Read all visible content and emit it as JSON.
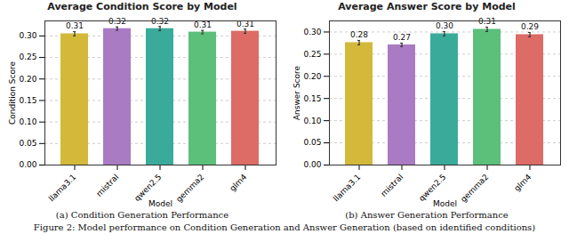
{
  "chart_data": [
    {
      "type": "bar",
      "title": "Average Condition Score by Model",
      "subtitle": "(a) Condition Generation Performance",
      "x_label": "Model",
      "y_label": "Condition Score",
      "categories": [
        "llama3.1",
        "mistral",
        "qwen2.5",
        "gemma2",
        "glm4"
      ],
      "values": [
        0.305,
        0.317,
        0.317,
        0.309,
        0.311
      ],
      "errors": [
        0.005,
        0.004,
        0.005,
        0.004,
        0.005
      ],
      "value_labels": [
        "0.31",
        "0.32",
        "0.32",
        "0.31",
        "0.31"
      ],
      "colors": [
        "#d4b83a",
        "#a97bc2",
        "#3aab9a",
        "#5cbf7a",
        "#dd6b66"
      ],
      "ylim": [
        0,
        0.335
      ],
      "yticks": [
        {
          "value": 0,
          "label": "0.00"
        },
        {
          "value": 0.05,
          "label": "0.05"
        },
        {
          "value": 0.1,
          "label": "0.10"
        },
        {
          "value": 0.15,
          "label": "0.15"
        },
        {
          "value": 0.2,
          "label": "0.20"
        },
        {
          "value": 0.25,
          "label": "0.25"
        },
        {
          "value": 0.3,
          "label": "0.30"
        }
      ],
      "grid": true,
      "data_labels": true
    },
    {
      "type": "bar",
      "title": "Average Answer Score by Model",
      "subtitle": "(b) Answer Generation Performance",
      "x_label": "Model",
      "y_label": "Answer Score",
      "categories": [
        "llama3.1",
        "mistral",
        "qwen2.5",
        "gemma2",
        "glm4"
      ],
      "values": [
        0.276,
        0.271,
        0.296,
        0.306,
        0.294
      ],
      "errors": [
        0.005,
        0.004,
        0.005,
        0.005,
        0.005
      ],
      "value_labels": [
        "0.28",
        "0.27",
        "0.30",
        "0.31",
        "0.29"
      ],
      "colors": [
        "#d4b83a",
        "#a97bc2",
        "#3aab9a",
        "#5cbf7a",
        "#dd6b66"
      ],
      "ylim": [
        0,
        0.325
      ],
      "yticks": [
        {
          "value": 0,
          "label": "0.00"
        },
        {
          "value": 0.05,
          "label": "0.05"
        },
        {
          "value": 0.1,
          "label": "0.10"
        },
        {
          "value": 0.15,
          "label": "0.15"
        },
        {
          "value": 0.2,
          "label": "0.20"
        },
        {
          "value": 0.25,
          "label": "0.25"
        },
        {
          "value": 0.3,
          "label": "0.30"
        }
      ],
      "grid": true,
      "data_labels": true
    }
  ],
  "caption": "Figure 2: Model performance on Condition Generation and Answer Generation (based on identified conditions)"
}
